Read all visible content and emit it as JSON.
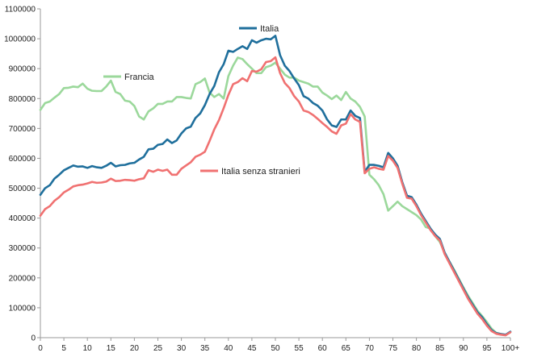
{
  "chart_data": {
    "type": "line",
    "title": "",
    "xlabel": "",
    "ylabel": "",
    "ylim": [
      0,
      1100000
    ],
    "y_ticks": [
      "0",
      "100000",
      "200000",
      "300000",
      "400000",
      "500000",
      "600000",
      "700000",
      "800000",
      "900000",
      "1000000",
      "1100000"
    ],
    "x_tick_labels": [
      "0",
      "5",
      "10",
      "15",
      "20",
      "25",
      "30",
      "35",
      "40",
      "45",
      "50",
      "55",
      "60",
      "65",
      "70",
      "75",
      "80",
      "85",
      "90",
      "95",
      "100+"
    ],
    "grid": false,
    "legend_placement": "inline labels near lines",
    "x": [
      0,
      1,
      2,
      3,
      4,
      5,
      6,
      7,
      8,
      9,
      10,
      11,
      12,
      13,
      14,
      15,
      16,
      17,
      18,
      19,
      20,
      21,
      22,
      23,
      24,
      25,
      26,
      27,
      28,
      29,
      30,
      31,
      32,
      33,
      34,
      35,
      36,
      37,
      38,
      39,
      40,
      41,
      42,
      43,
      44,
      45,
      46,
      47,
      48,
      49,
      50,
      51,
      52,
      53,
      54,
      55,
      56,
      57,
      58,
      59,
      60,
      61,
      62,
      63,
      64,
      65,
      66,
      67,
      68,
      69,
      70,
      71,
      72,
      73,
      74,
      75,
      76,
      77,
      78,
      79,
      80,
      81,
      82,
      83,
      84,
      85,
      86,
      87,
      88,
      89,
      90,
      91,
      92,
      93,
      94,
      95,
      96,
      97,
      98,
      99,
      100
    ],
    "series": [
      {
        "name": "Italia",
        "color": "#1f6f9c",
        "values": [
          478000,
          500000,
          510000,
          532000,
          545000,
          560000,
          568000,
          576000,
          572000,
          573000,
          568000,
          574000,
          570000,
          568000,
          575000,
          585000,
          573000,
          577000,
          578000,
          583000,
          585000,
          596000,
          605000,
          630000,
          632000,
          645000,
          648000,
          663000,
          651000,
          660000,
          683000,
          700000,
          706000,
          735000,
          750000,
          778000,
          815000,
          842000,
          888000,
          915000,
          960000,
          956000,
          966000,
          975000,
          966000,
          995000,
          987000,
          995000,
          1000000,
          998000,
          1010000,
          945000,
          910000,
          892000,
          867000,
          845000,
          808000,
          800000,
          785000,
          776000,
          760000,
          730000,
          710000,
          705000,
          730000,
          730000,
          760000,
          742000,
          735000,
          555000,
          578000,
          578000,
          575000,
          570000,
          618000,
          600000,
          575000,
          520000,
          475000,
          470000,
          445000,
          415000,
          390000,
          365000,
          345000,
          330000,
          285000,
          255000,
          225000,
          195000,
          165000,
          135000,
          110000,
          85000,
          68000,
          45000,
          25000,
          15000,
          12000,
          10000,
          20000
        ]
      },
      {
        "name": "Italia senza stranieri",
        "color": "#f07171",
        "values": [
          408000,
          430000,
          440000,
          458000,
          470000,
          486000,
          495000,
          506000,
          510000,
          512000,
          516000,
          521000,
          518000,
          519000,
          522000,
          532000,
          524000,
          525000,
          528000,
          527000,
          525000,
          530000,
          533000,
          560000,
          555000,
          562000,
          558000,
          562000,
          545000,
          545000,
          565000,
          576000,
          587000,
          605000,
          612000,
          622000,
          658000,
          697000,
          728000,
          768000,
          812000,
          848000,
          855000,
          868000,
          858000,
          892000,
          890000,
          898000,
          922000,
          925000,
          938000,
          885000,
          852000,
          835000,
          808000,
          790000,
          760000,
          755000,
          745000,
          732000,
          718000,
          705000,
          690000,
          682000,
          710000,
          716000,
          748000,
          730000,
          722000,
          550000,
          565000,
          570000,
          565000,
          562000,
          608000,
          592000,
          568000,
          515000,
          468000,
          465000,
          440000,
          410000,
          385000,
          360000,
          340000,
          325000,
          280000,
          250000,
          220000,
          190000,
          160000,
          130000,
          105000,
          80000,
          62000,
          40000,
          22000,
          13000,
          10000,
          8000,
          18000
        ]
      },
      {
        "name": "Francia",
        "color": "#9bd89b",
        "values": [
          762000,
          785000,
          790000,
          803000,
          815000,
          835000,
          836000,
          840000,
          838000,
          850000,
          833000,
          826000,
          825000,
          825000,
          840000,
          860000,
          822000,
          815000,
          793000,
          790000,
          775000,
          740000,
          730000,
          757000,
          767000,
          782000,
          782000,
          790000,
          790000,
          805000,
          805000,
          802000,
          800000,
          848000,
          855000,
          867000,
          820000,
          805000,
          815000,
          800000,
          875000,
          910000,
          937000,
          932000,
          915000,
          900000,
          885000,
          885000,
          905000,
          910000,
          920000,
          900000,
          880000,
          870000,
          870000,
          860000,
          855000,
          850000,
          840000,
          840000,
          820000,
          810000,
          798000,
          810000,
          795000,
          822000,
          800000,
          790000,
          772000,
          740000,
          545000,
          530000,
          510000,
          480000,
          425000,
          440000,
          455000,
          440000,
          430000,
          420000,
          410000,
          395000,
          370000,
          365000,
          340000,
          320000,
          285000,
          255000,
          228000,
          198000,
          168000,
          140000,
          115000,
          90000,
          72000,
          52000,
          30000,
          16000,
          12000,
          9000,
          18000
        ]
      }
    ]
  }
}
